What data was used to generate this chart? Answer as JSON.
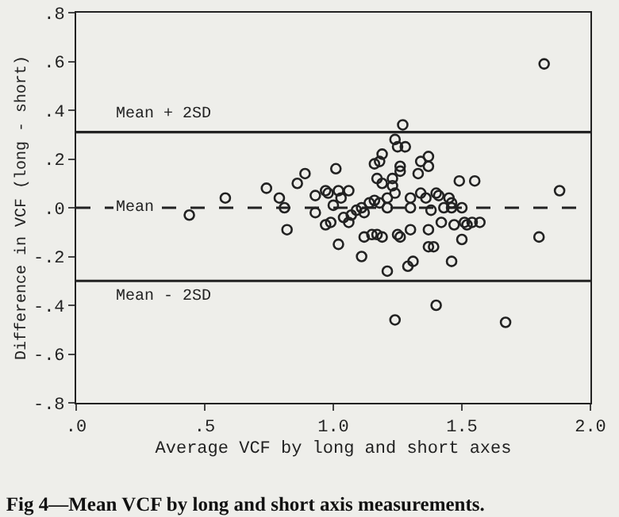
{
  "chart_data": {
    "type": "scatter",
    "title": "Fig 4—Mean VCF by long and short axis measurements.",
    "xlabel": "Average VCF by long and short axes",
    "ylabel": "Difference in VCF (long - short)",
    "marker": "circle",
    "grid": false,
    "series": [
      {
        "color": "#222222",
        "x": [
          0.44,
          0.58,
          0.74,
          0.79,
          0.86,
          0.89,
          0.81,
          0.82,
          0.93,
          0.93,
          0.97,
          1.01,
          0.98,
          1.02,
          1.06,
          1.03,
          1.0,
          0.97,
          0.99,
          1.04,
          1.06,
          1.02,
          1.07,
          1.09,
          1.11,
          1.12,
          1.14,
          1.16,
          1.18,
          1.17,
          1.16,
          1.18,
          1.19,
          1.19,
          1.23,
          1.24,
          1.23,
          1.26,
          1.26,
          1.25,
          1.24,
          1.28,
          1.21,
          1.21,
          1.3,
          1.3,
          1.33,
          1.34,
          1.37,
          1.37,
          1.34,
          1.36,
          1.4,
          1.41,
          1.38,
          1.43,
          1.45,
          1.46,
          1.46,
          1.49,
          1.55,
          1.5,
          1.12,
          1.15,
          1.17,
          1.19,
          1.25,
          1.26,
          1.3,
          1.37,
          1.37,
          1.39,
          1.42,
          1.47,
          1.51,
          1.52,
          1.54,
          1.57,
          1.5,
          1.46,
          1.11,
          1.21,
          1.29,
          1.31,
          1.27,
          1.82,
          1.88,
          1.8,
          1.4,
          1.24,
          1.67
        ],
        "values": [
          -0.03,
          0.04,
          0.08,
          0.04,
          0.1,
          0.14,
          0.0,
          -0.09,
          0.05,
          -0.02,
          0.07,
          0.16,
          0.06,
          0.07,
          0.07,
          0.04,
          0.01,
          -0.07,
          -0.06,
          -0.04,
          -0.06,
          -0.15,
          -0.03,
          -0.01,
          0.0,
          -0.02,
          0.02,
          0.03,
          0.02,
          0.12,
          0.18,
          0.19,
          0.22,
          0.1,
          0.09,
          0.06,
          0.12,
          0.17,
          0.15,
          0.25,
          0.28,
          0.25,
          0.04,
          0.0,
          0.04,
          0.0,
          0.14,
          0.19,
          0.21,
          0.17,
          0.06,
          0.04,
          0.06,
          0.05,
          -0.01,
          0.0,
          0.04,
          0.02,
          0.0,
          0.11,
          0.11,
          0.0,
          -0.12,
          -0.11,
          -0.11,
          -0.12,
          -0.11,
          -0.12,
          -0.09,
          -0.09,
          -0.16,
          -0.16,
          -0.06,
          -0.07,
          -0.06,
          -0.07,
          -0.06,
          -0.06,
          -0.13,
          -0.22,
          -0.2,
          -0.26,
          -0.24,
          -0.22,
          0.34,
          0.59,
          0.07,
          -0.12,
          -0.4,
          -0.46,
          -0.47
        ]
      }
    ],
    "xlim": [
      0,
      2.0
    ],
    "xticks": [
      {
        "value": 0,
        "label": ".0"
      },
      {
        "value": 0.5,
        "label": ".5"
      },
      {
        "value": 1.0,
        "label": "1.0"
      },
      {
        "value": 1.5,
        "label": "1.5"
      },
      {
        "value": 2.0,
        "label": "2.0"
      }
    ],
    "ylim": [
      -0.8,
      0.8
    ],
    "yticks": [
      {
        "value": -0.8,
        "label": "-.8"
      },
      {
        "value": -0.6,
        "label": "-.6"
      },
      {
        "value": -0.4,
        "label": "-.4"
      },
      {
        "value": -0.2,
        "label": "-.2"
      },
      {
        "value": 0,
        "label": ".0"
      },
      {
        "value": 0.2,
        "label": ".2"
      },
      {
        "value": 0.4,
        "label": ".4"
      },
      {
        "value": 0.6,
        "label": ".6"
      },
      {
        "value": 0.8,
        "label": ".8"
      }
    ],
    "ref_lines": [
      {
        "axis": "y",
        "value": 0.31,
        "label": "Mean + 2SD",
        "line_style": "solid",
        "color": "#222222"
      },
      {
        "axis": "y",
        "value": 0,
        "label": "Mean",
        "line_style": "dashed",
        "color": "#222222"
      },
      {
        "axis": "y",
        "value": -0.3,
        "label": "Mean - 2SD",
        "line_style": "solid",
        "color": "#222222"
      }
    ]
  }
}
